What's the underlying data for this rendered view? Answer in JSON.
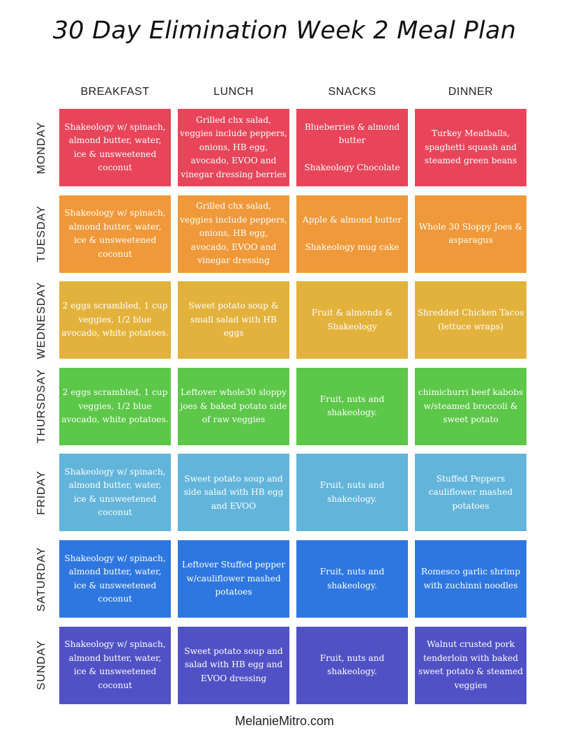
{
  "title": "30 Day Elimination Week 2 Meal Plan",
  "columns": [
    "BREAKFAST",
    "LUNCH",
    "SNACKS",
    "DINNER"
  ],
  "days": [
    {
      "label": "MONDAY",
      "color": "#E8455A",
      "meals": [
        "Shakeology w/ spinach, almond butter, water, ice & unsweetened coconut",
        "Grilled chx salad, veggies include peppers, onions, HB egg, avocado, EVOO and vinegar dressing berries",
        "Blueberries & almond butter\n\nShakeology Chocolate",
        "Turkey Meatballs, spaghetti squash and steamed green beans"
      ]
    },
    {
      "label": "TUESDAY",
      "color": "#F0993A",
      "meals": [
        "Shakeology w/ spinach, almond butter, water, ice & unsweetened coconut",
        "Grilled chx salad, veggies include peppers, onions, HB egg, avocado, EVOO and vinegar dressing",
        "Apple & almond butter\n\nShakeology mug cake",
        "Whole 30 Sloppy Joes & asparagus"
      ]
    },
    {
      "label": "WEDNESDAY",
      "color": "#E3B23C",
      "meals": [
        "2 eggs scrambled, 1 cup veggies, 1/2 blue avocado, white potatoes.",
        "Sweet potato soup & small salad with HB eggs",
        "Fruit & almonds & Shakeology",
        "Shredded Chicken Tacos (lettuce wraps)"
      ]
    },
    {
      "label": "THURSDSAY",
      "color": "#5CC748",
      "meals": [
        "2 eggs scrambled, 1 cup veggies, 1/2 blue avocado, white potatoes.",
        "Leftover whole30 sloppy joes & baked potato side of raw veggies",
        "Fruit, nuts and shakeology.",
        "chimichurri beef kabobs w/steamed broccoli & sweet potato"
      ]
    },
    {
      "label": "FRIDAY",
      "color": "#62B4DA",
      "meals": [
        "Shakeology w/ spinach, almond butter, water, ice & unsweetened coconut",
        "Sweet potato soup and side salad with HB egg and EVOO",
        "Fruit, nuts and shakeology.",
        "Stuffed Peppers cauliflower mashed potatoes"
      ]
    },
    {
      "label": "SATURDAY",
      "color": "#2E77E0",
      "meals": [
        "Shakeology w/ spinach, almond butter, water, ice & unsweetened coconut",
        "Leftover Stuffed pepper w/cauliflower mashed potatoes",
        "Fruit, nuts and shakeology.",
        "Romesco garlic shrimp with zuchinni noodles"
      ]
    },
    {
      "label": "SUNDAY",
      "color": "#5151C6",
      "meals": [
        "Shakeology w/ spinach, almond butter, water, ice & unsweetened coconut",
        "Sweet potato soup and salad with HB egg and EVOO dressing",
        "Fruit, nuts and shakeology.",
        "Walnut crusted pork tenderloin with baked sweet potato & steamed veggies"
      ]
    }
  ],
  "footer": "MelanieMitro.com"
}
